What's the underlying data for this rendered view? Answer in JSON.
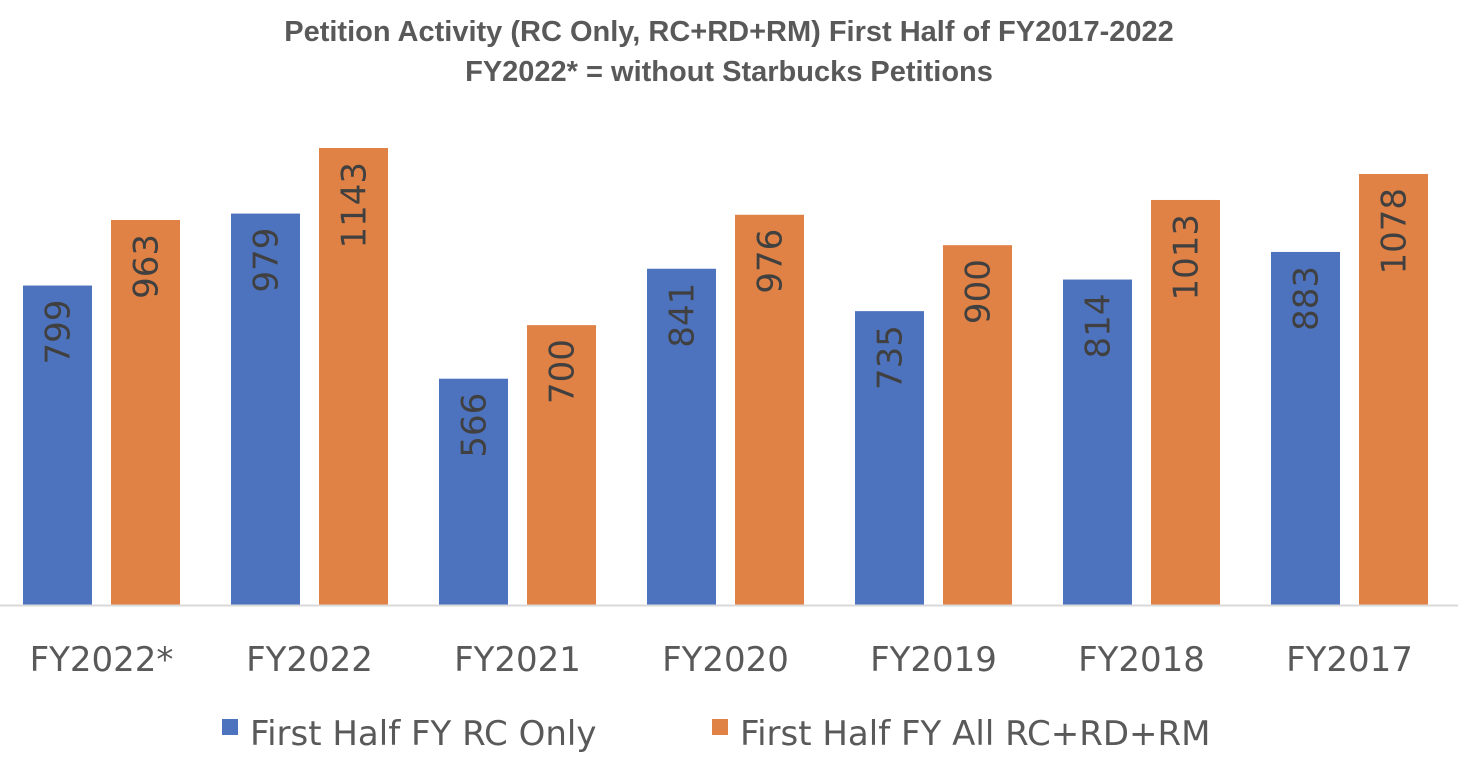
{
  "chart_data": {
    "type": "bar",
    "title": "Petition Activity (RC Only, RC+RD+RM) First Half of FY2017-2022",
    "subtitle": "FY2022* = without Starbucks Petitions",
    "xlabel": "",
    "ylabel": "",
    "ylim": [
      0,
      1510
    ],
    "grid": false,
    "legend_position": "bottom",
    "categories": [
      "FY2022*",
      "FY2022",
      "FY2021",
      "FY2020",
      "FY2019",
      "FY2018",
      "FY2017"
    ],
    "series": [
      {
        "name": "First Half FY RC Only",
        "color": "#4e73be",
        "values": [
          799,
          979,
          566,
          841,
          735,
          814,
          883
        ]
      },
      {
        "name": "First Half FY All RC+RD+RM",
        "color": "#e08245",
        "values": [
          963,
          1143,
          700,
          976,
          900,
          1013,
          1078
        ]
      }
    ]
  }
}
